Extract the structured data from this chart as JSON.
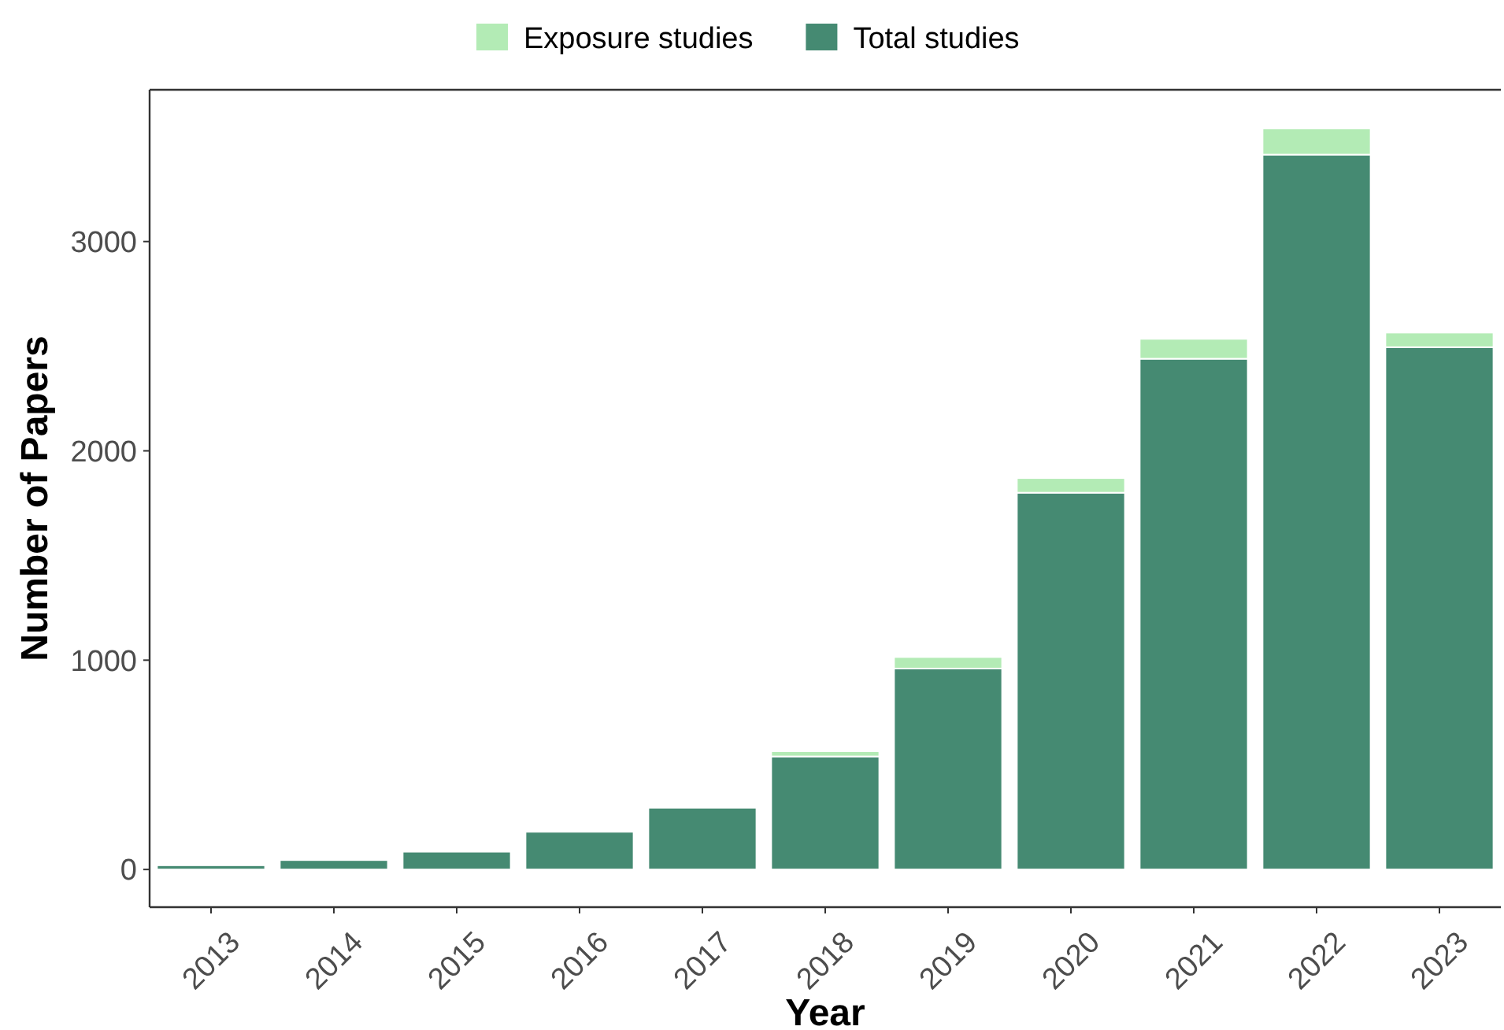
{
  "chart_data": {
    "type": "bar",
    "stacked": true,
    "xlabel": "Year",
    "ylabel": "Number of Papers",
    "categories": [
      "2013",
      "2014",
      "2015",
      "2016",
      "2017",
      "2018",
      "2019",
      "2020",
      "2021",
      "2022",
      "2023"
    ],
    "series": [
      {
        "name": "Total studies",
        "color": "#458a72",
        "values": [
          20,
          45,
          85,
          180,
          295,
          540,
          960,
          1800,
          2440,
          3415,
          2495
        ]
      },
      {
        "name": "Exposure studies",
        "color": "#b3ebb5",
        "values": [
          null,
          0,
          0,
          0,
          0,
          25,
          55,
          70,
          95,
          125,
          70
        ]
      }
    ],
    "ylim": [
      -180,
      3725
    ],
    "yticks": [
      0,
      1000,
      2000,
      3000
    ],
    "grid": false,
    "legend": "top"
  }
}
